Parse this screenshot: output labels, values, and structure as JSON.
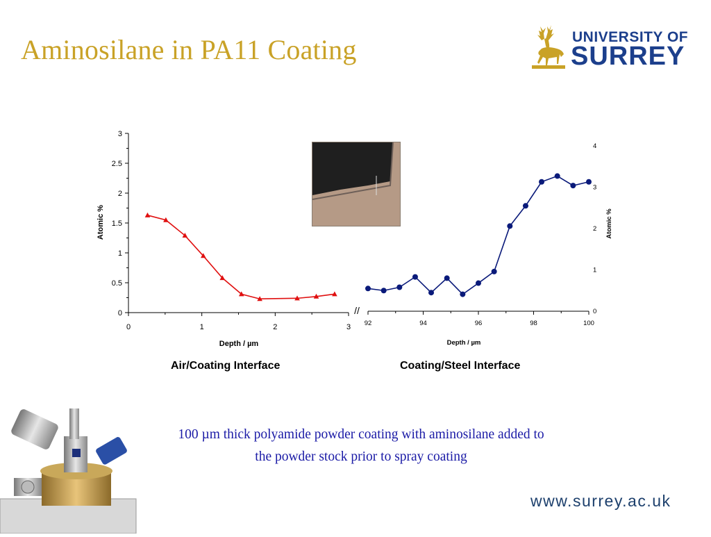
{
  "title": "Aminosilane in PA11 Coating",
  "logo": {
    "line1": "UNIVERSITY OF",
    "line2": "SURREY"
  },
  "chart_data": [
    {
      "type": "line",
      "ylabel": "Atomic %",
      "xlabel": "Depth / µm",
      "caption": "Air/Coating Interface",
      "xlim": [
        0,
        3
      ],
      "ylim": [
        0,
        3
      ],
      "xticks": [
        "0",
        "1",
        "2",
        "3"
      ],
      "yticks": [
        "0",
        "0.5",
        "1",
        "1.5",
        "2",
        "2.5",
        "3"
      ],
      "color": "#e01010",
      "marker": "triangle",
      "x": [
        0.26,
        0.51,
        0.77,
        1.02,
        1.28,
        1.54,
        1.79,
        2.3,
        2.56,
        2.81
      ],
      "y": [
        1.63,
        1.55,
        1.29,
        0.95,
        0.58,
        0.31,
        0.23,
        0.24,
        0.27,
        0.31
      ]
    },
    {
      "type": "line",
      "ylabel": "Atomic %",
      "xlabel": "Depth / µm",
      "caption": "Coating/Steel Interface",
      "xlim": [
        92,
        100
      ],
      "ylim": [
        0,
        4
      ],
      "xticks": [
        "92",
        "94",
        "96",
        "98",
        "100"
      ],
      "yticks": [
        "0",
        "1",
        "2",
        "3",
        "4"
      ],
      "color": "#0a1a7a",
      "marker": "circle",
      "x": [
        92,
        92.57,
        93.14,
        93.71,
        94.29,
        94.86,
        95.43,
        96,
        96.57,
        97.14,
        97.71,
        98.29,
        98.86,
        99.43,
        100
      ],
      "y": [
        0.55,
        0.5,
        0.58,
        0.83,
        0.45,
        0.8,
        0.41,
        0.68,
        0.96,
        2.06,
        2.55,
        3.13,
        3.27,
        3.04,
        3.13
      ]
    }
  ],
  "axis_break": "//",
  "note": {
    "line1": "100 µm thick polyamide powder coating with aminosilane added to",
    "line2": "the powder stock prior to spray coating"
  },
  "url": "www.surrey.ac.uk",
  "colors": {
    "title": "#c9a227",
    "note": "#1a1aa6",
    "brand": "#1c3f8c"
  },
  "icons": {
    "logo": "stag-icon",
    "photo": "sample-photo",
    "equipment": "vacuum-chamber-image"
  }
}
